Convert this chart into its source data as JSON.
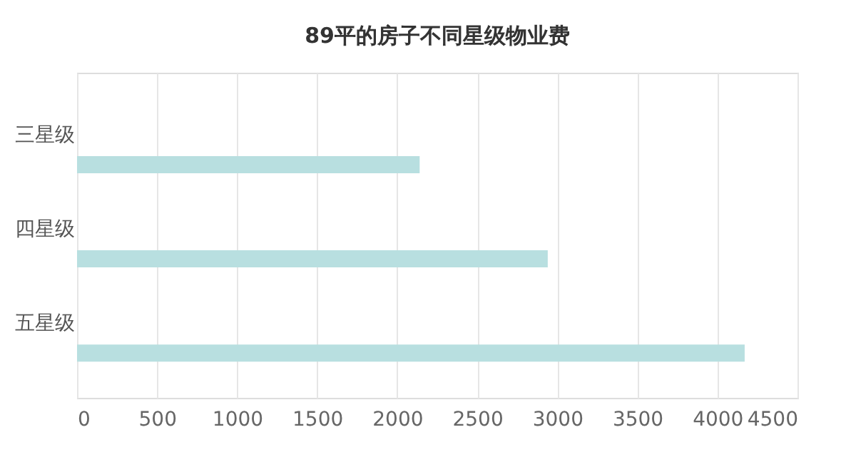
{
  "chart_data": {
    "type": "bar",
    "orientation": "horizontal",
    "title": "89平的房子不同星级物业费",
    "categories": [
      "三星级",
      "四星级",
      "五星级"
    ],
    "values": [
      2140,
      2940,
      4170
    ],
    "color": "#b8dfe0",
    "xlim": [
      0,
      4500
    ],
    "xticks": [
      0,
      500,
      1000,
      1500,
      2000,
      2500,
      3000,
      3500,
      4000,
      4500
    ],
    "grid": "x"
  }
}
